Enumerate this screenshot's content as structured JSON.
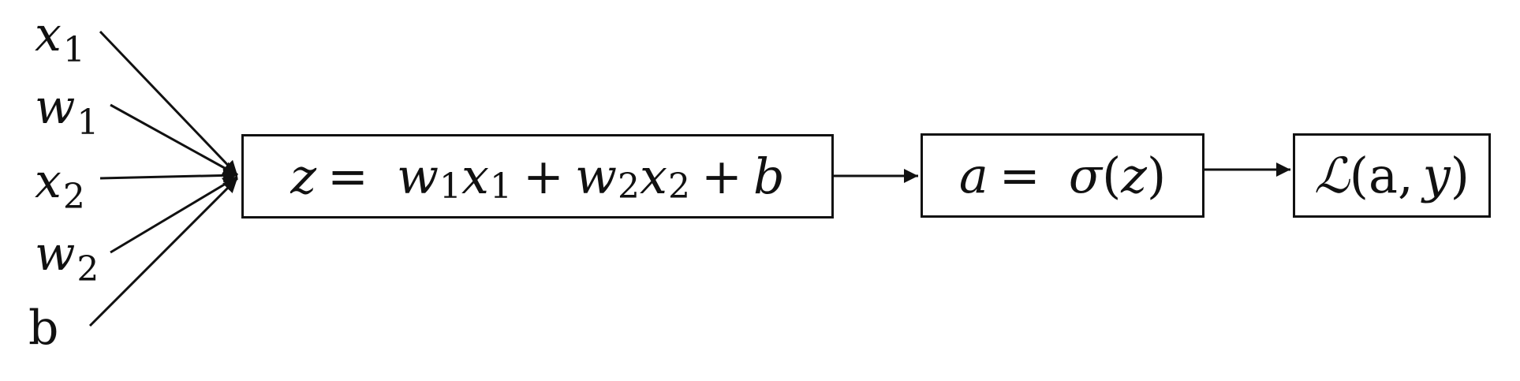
{
  "inputs": [
    {
      "var": "x",
      "sub": "1"
    },
    {
      "var": "w",
      "sub": "1"
    },
    {
      "var": "x",
      "sub": "2"
    },
    {
      "var": "w",
      "sub": "2"
    },
    {
      "var": "",
      "sub": "",
      "plain": "b"
    }
  ],
  "nodes": {
    "linear": {
      "lhs": "z",
      "eq": "=",
      "w1": "w",
      "w1_sub": "1",
      "x1": "x",
      "x1_sub": "1",
      "plus1": "+",
      "w2": "w",
      "w2_sub": "2",
      "x2": "x",
      "x2_sub": "2",
      "plus2": "+",
      "b": "b"
    },
    "activation": {
      "lhs": "a",
      "eq": "=",
      "fn": "σ",
      "open": "(",
      "arg": "z",
      "close": ")"
    },
    "loss": {
      "fn": "ℒ",
      "open": "(",
      "arg1": "a",
      "comma": ",",
      "arg2": "y",
      "close": ")"
    }
  }
}
